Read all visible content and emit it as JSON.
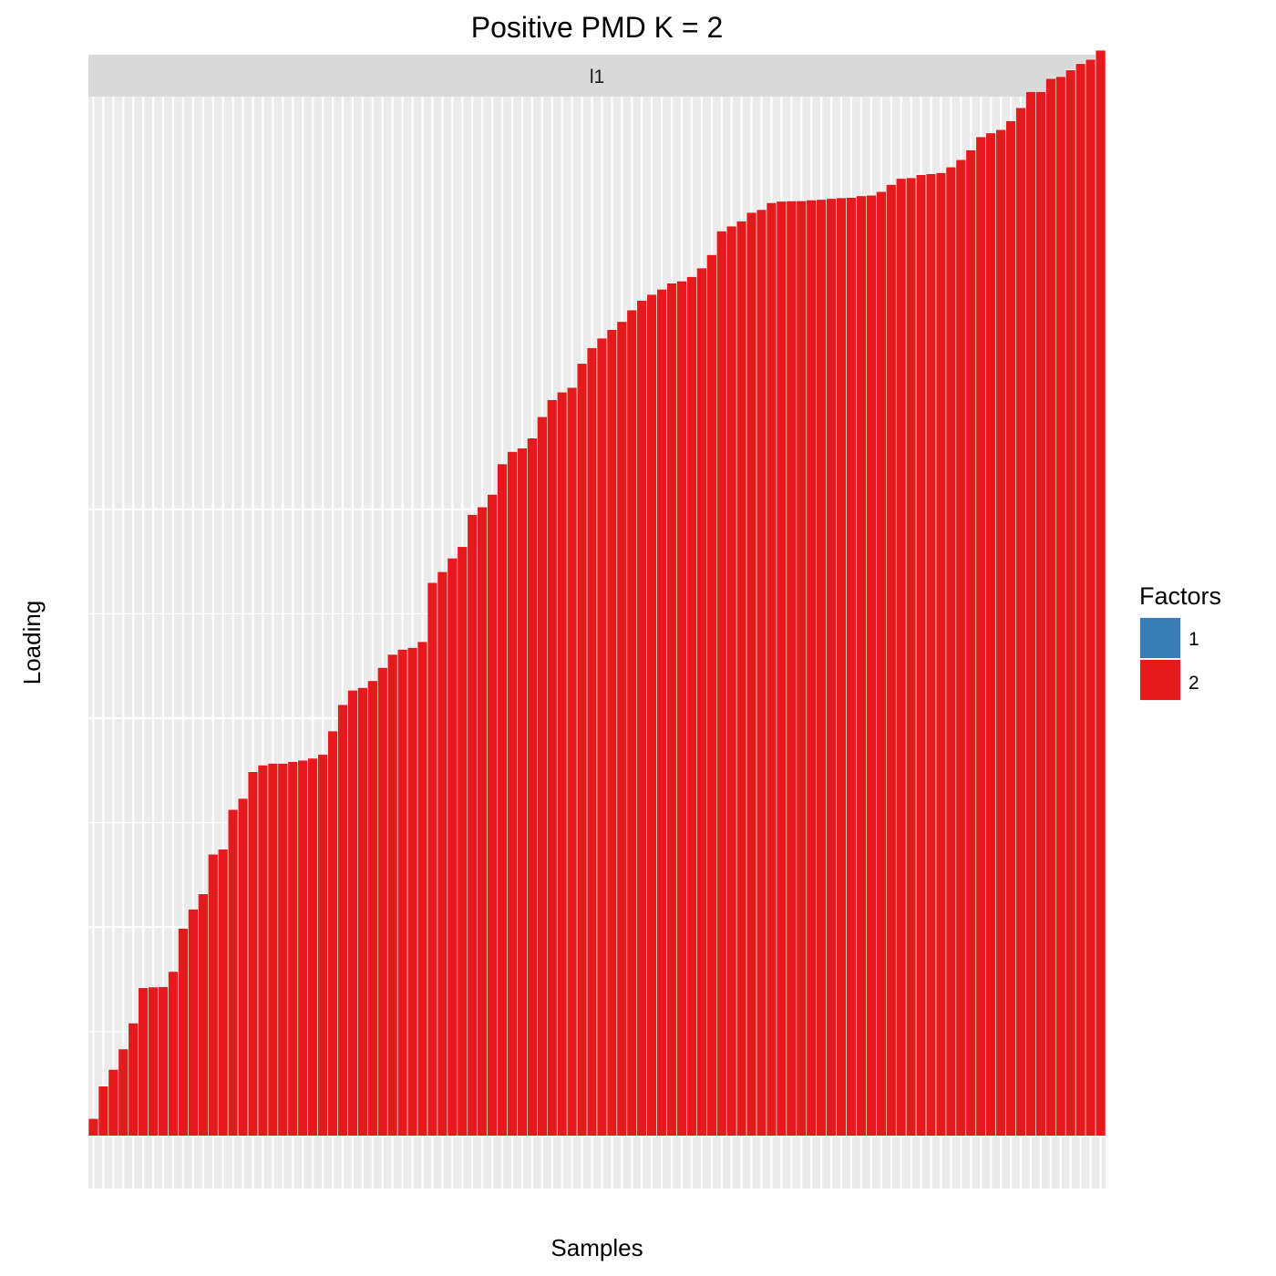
{
  "chart_data": {
    "type": "bar",
    "title": "Positive PMD K = 2",
    "facet_label": "l1",
    "xlabel": "Samples",
    "ylabel": "Loading",
    "x_ticks": "none",
    "y_ticks": "none",
    "ylim": [
      -0.0503,
      0.9952
    ],
    "grid": true,
    "legend": {
      "title": "Factors",
      "position": "right",
      "entries": [
        {
          "label": "1",
          "color": "#377EB8"
        },
        {
          "label": "2",
          "color": "#E41A1C"
        }
      ]
    },
    "series": [
      {
        "factor": "2",
        "color": "#E41A1C",
        "values": [
          0.0167,
          0.0477,
          0.0637,
          0.0833,
          0.1081,
          0.1419,
          0.1426,
          0.1429,
          0.1575,
          0.1988,
          0.2172,
          0.2318,
          0.2698,
          0.2746,
          0.3126,
          0.3232,
          0.3488,
          0.3551,
          0.3568,
          0.3568,
          0.3585,
          0.3598,
          0.3617,
          0.3653,
          0.3878,
          0.413,
          0.4268,
          0.4293,
          0.4359,
          0.4485,
          0.4611,
          0.4659,
          0.4676,
          0.4733,
          0.5299,
          0.5403,
          0.5533,
          0.5643,
          0.595,
          0.6023,
          0.6143,
          0.6435,
          0.6553,
          0.6586,
          0.6682,
          0.6887,
          0.7049,
          0.7123,
          0.7167,
          0.7397,
          0.7547,
          0.7639,
          0.7721,
          0.7798,
          0.7909,
          0.8001,
          0.8058,
          0.8108,
          0.8166,
          0.8186,
          0.8228,
          0.8311,
          0.8438,
          0.8665,
          0.8712,
          0.876,
          0.8843,
          0.887,
          0.8936,
          0.895,
          0.8953,
          0.8954,
          0.8962,
          0.8967,
          0.8976,
          0.8983,
          0.8986,
          0.9002,
          0.9008,
          0.9043,
          0.911,
          0.9168,
          0.9175,
          0.9204,
          0.9213,
          0.9223,
          0.9278,
          0.9348,
          0.9441,
          0.9567,
          0.9604,
          0.9636,
          0.972,
          0.9846,
          1.0,
          1.0,
          1.0126,
          1.0144,
          1.0207,
          1.0268,
          1.0309,
          1.0396
        ]
      }
    ]
  }
}
